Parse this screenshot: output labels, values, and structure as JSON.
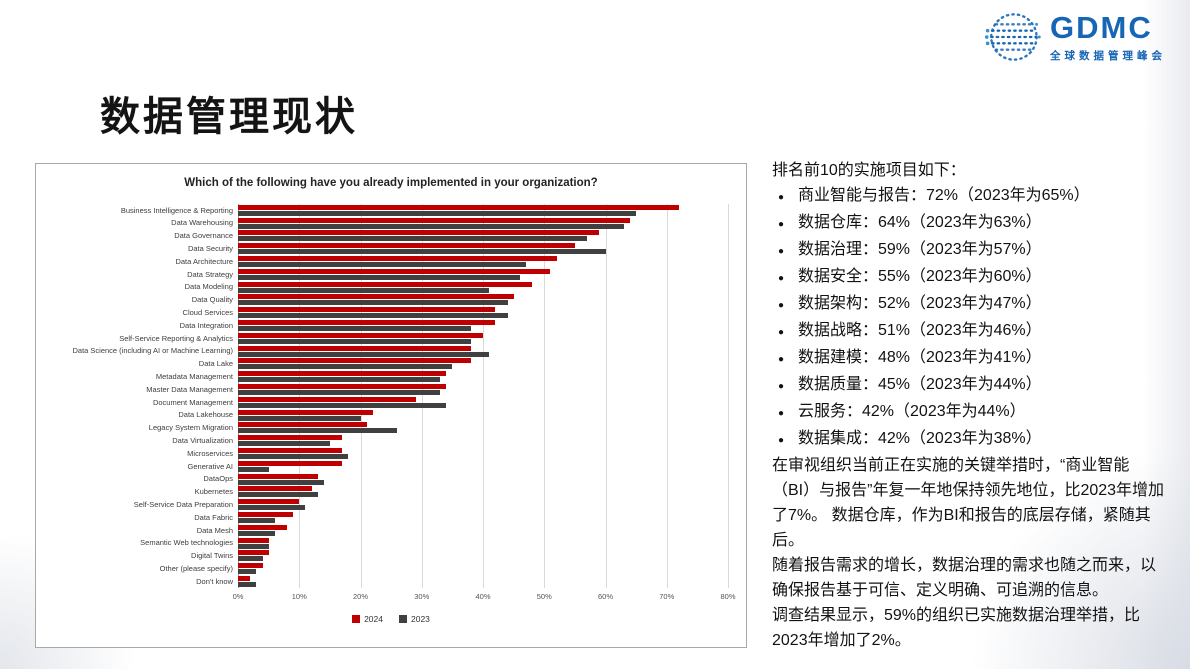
{
  "page": {
    "title": "数据管理现状"
  },
  "logo": {
    "name": "GDMC",
    "subtitle": "全球数据管理峰会",
    "color": "#1766b5"
  },
  "chart_data": {
    "type": "bar",
    "orientation": "horizontal",
    "title": "Which of the following have you already implemented in your organization?",
    "xlabel": "",
    "ylabel": "",
    "xlim": [
      0,
      80
    ],
    "x_ticks": [
      "0%",
      "10%",
      "20%",
      "30%",
      "40%",
      "50%",
      "60%",
      "70%",
      "80%"
    ],
    "grid": true,
    "legend_position": "bottom",
    "categories": [
      "Business Intelligence & Reporting",
      "Data Warehousing",
      "Data Governance",
      "Data Security",
      "Data Architecture",
      "Data Strategy",
      "Data Modeling",
      "Data Quality",
      "Cloud Services",
      "Data Integration",
      "Self-Service Reporting & Analytics",
      "Data Science (including AI or Machine Learning)",
      "Data Lake",
      "Metadata Management",
      "Master Data Management",
      "Document Management",
      "Data Lakehouse",
      "Legacy System Migration",
      "Data Virtualization",
      "Microservices",
      "Generative AI",
      "DataOps",
      "Kubernetes",
      "Self-Service Data Preparation",
      "Data Fabric",
      "Data Mesh",
      "Semantic Web technologies",
      "Digital Twins",
      "Other (please specify)",
      "Don't know"
    ],
    "series": [
      {
        "name": "2024",
        "color": "#c00000",
        "values": [
          72,
          64,
          59,
          55,
          52,
          51,
          48,
          45,
          42,
          42,
          40,
          38,
          38,
          34,
          34,
          29,
          22,
          21,
          17,
          17,
          17,
          13,
          12,
          10,
          9,
          8,
          5,
          5,
          4,
          2
        ]
      },
      {
        "name": "2023",
        "color": "#404040",
        "values": [
          65,
          63,
          57,
          60,
          47,
          46,
          41,
          44,
          44,
          38,
          38,
          41,
          35,
          33,
          33,
          34,
          20,
          26,
          15,
          18,
          5,
          14,
          13,
          11,
          6,
          6,
          5,
          4,
          3,
          3
        ]
      }
    ]
  },
  "notes": {
    "intro": "排名前10的实施项目如下：",
    "top10": [
      "商业智能与报告：72%（2023年为65%）",
      "数据仓库：64%（2023年为63%）",
      "数据治理：59%（2023年为57%）",
      "数据安全：55%（2023年为60%）",
      "数据架构：52%（2023年为47%）",
      "数据战略：51%（2023年为46%）",
      "数据建模：48%（2023年为41%）",
      "数据质量：45%（2023年为44%）",
      "云服务：42%（2023年为44%）",
      "数据集成：42%（2023年为38%）"
    ],
    "para1": "在审视组织当前正在实施的关键举措时，“商业智能（BI）与报告”年复一年地保持领先地位，比2023年增加了7%。 数据仓库，作为BI和报告的底层存储，紧随其后。",
    "para2": "随着报告需求的增长，数据治理的需求也随之而来，以确保报告基于可信、定义明确、可追溯的信息。",
    "para3": "调查结果显示，59%的组织已实施数据治理举措，比2023年增加了2%。"
  }
}
